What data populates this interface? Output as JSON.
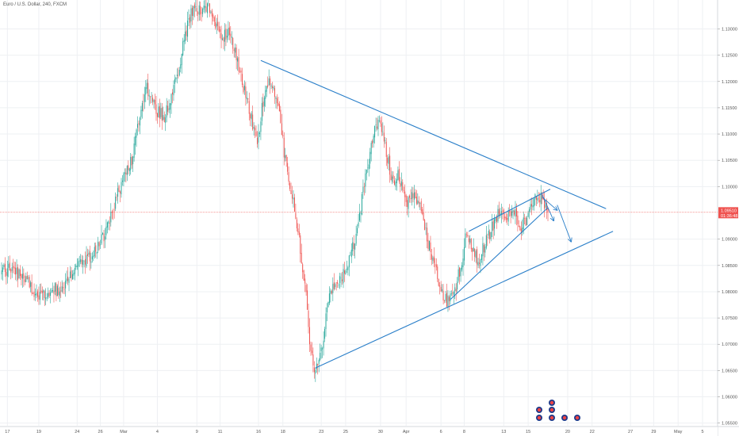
{
  "header": {
    "title": "Euro / U.S. Dollar, 240, FXCM"
  },
  "colors": {
    "bull": "#26a69a",
    "bear": "#ef5350",
    "drawing": "#2a7fc9",
    "price_line": "#ef5350",
    "grid": "#eef0f3",
    "axis_text": "#555555"
  },
  "price_tag": {
    "price": "1.09510",
    "countdown": "01:36:48"
  },
  "event_icons": [
    "flag-icon",
    "flag-icon",
    "flag-icon",
    "flag-icon",
    "flag-icon",
    "flag-icon",
    "flag-icon"
  ],
  "chart_data": {
    "type": "candlestick",
    "symbol": "Euro / U.S. Dollar",
    "interval": "240",
    "source": "FXCM",
    "ylim": [
      1.0545,
      1.1355
    ],
    "y_ticks": [
      1.13,
      1.125,
      1.12,
      1.115,
      1.11,
      1.105,
      1.1,
      1.09,
      1.085,
      1.08,
      1.075,
      1.07,
      1.065,
      1.06,
      1.055
    ],
    "y_tick_labels": [
      "1.13000",
      "1.12500",
      "1.12000",
      "1.11500",
      "1.11000",
      "1.10500",
      "1.10000",
      "1.09000",
      "1.08500",
      "1.08000",
      "1.07500",
      "1.07000",
      "1.06500",
      "1.06000",
      "1.05500"
    ],
    "x_ticks": [
      {
        "label": "17",
        "bar": 5
      },
      {
        "label": "19",
        "bar": 32
      },
      {
        "label": "24",
        "bar": 65
      },
      {
        "label": "26",
        "bar": 85
      },
      {
        "label": "Mar",
        "bar": 105
      },
      {
        "label": "4",
        "bar": 134
      },
      {
        "label": "9",
        "bar": 168
      },
      {
        "label": "11",
        "bar": 188
      },
      {
        "label": "16",
        "bar": 221
      },
      {
        "label": "18",
        "bar": 242
      },
      {
        "label": "23",
        "bar": 275
      },
      {
        "label": "25",
        "bar": 296
      },
      {
        "label": "30",
        "bar": 326
      },
      {
        "label": "Apr",
        "bar": 348
      },
      {
        "label": "6",
        "bar": 378
      },
      {
        "label": "8",
        "bar": 398
      },
      {
        "label": "13",
        "bar": 432
      },
      {
        "label": "15",
        "bar": 453
      },
      {
        "label": "20",
        "bar": 487
      },
      {
        "label": "22",
        "bar": 508
      },
      {
        "label": "27",
        "bar": 541
      },
      {
        "label": "29",
        "bar": 561
      },
      {
        "label": "May",
        "bar": 582
      },
      {
        "label": "5",
        "bar": 603
      }
    ],
    "current_price": 1.0951,
    "keypoints": [
      [
        0,
        1.0835
      ],
      [
        6,
        1.0845
      ],
      [
        14,
        1.0835
      ],
      [
        22,
        1.0825
      ],
      [
        28,
        1.08
      ],
      [
        36,
        1.0795
      ],
      [
        44,
        1.081
      ],
      [
        50,
        1.0798
      ],
      [
        58,
        1.083
      ],
      [
        66,
        1.086
      ],
      [
        74,
        1.0865
      ],
      [
        82,
        1.088
      ],
      [
        90,
        1.0915
      ],
      [
        96,
        1.096
      ],
      [
        104,
        1.101
      ],
      [
        112,
        1.105
      ],
      [
        118,
        1.112
      ],
      [
        124,
        1.119
      ],
      [
        132,
        1.115
      ],
      [
        140,
        1.113
      ],
      [
        148,
        1.119
      ],
      [
        154,
        1.124
      ],
      [
        158,
        1.129
      ],
      [
        162,
        1.132
      ],
      [
        166,
        1.1345
      ],
      [
        172,
        1.133
      ],
      [
        178,
        1.134
      ],
      [
        184,
        1.131
      ],
      [
        190,
        1.128
      ],
      [
        196,
        1.13
      ],
      [
        202,
        1.125
      ],
      [
        208,
        1.119
      ],
      [
        214,
        1.114
      ],
      [
        220,
        1.108
      ],
      [
        226,
        1.118
      ],
      [
        232,
        1.12
      ],
      [
        238,
        1.115
      ],
      [
        244,
        1.105
      ],
      [
        250,
        1.098
      ],
      [
        256,
        1.09
      ],
      [
        262,
        1.08
      ],
      [
        266,
        1.068
      ],
      [
        270,
        1.065
      ],
      [
        276,
        1.07
      ],
      [
        282,
        1.08
      ],
      [
        290,
        1.082
      ],
      [
        298,
        1.085
      ],
      [
        306,
        1.092
      ],
      [
        312,
        1.1
      ],
      [
        318,
        1.108
      ],
      [
        324,
        1.113
      ],
      [
        330,
        1.108
      ],
      [
        336,
        1.101
      ],
      [
        342,
        1.102
      ],
      [
        348,
        1.096
      ],
      [
        354,
        1.099
      ],
      [
        360,
        1.096
      ],
      [
        366,
        1.09
      ],
      [
        372,
        1.086
      ],
      [
        378,
        1.08
      ],
      [
        384,
        1.078
      ],
      [
        390,
        1.08
      ],
      [
        396,
        1.086
      ],
      [
        400,
        1.0915
      ],
      [
        404,
        1.088
      ],
      [
        410,
        1.086
      ],
      [
        416,
        1.089
      ],
      [
        422,
        1.092
      ],
      [
        428,
        1.095
      ],
      [
        434,
        1.094
      ],
      [
        440,
        1.096
      ],
      [
        446,
        1.092
      ],
      [
        452,
        1.094
      ],
      [
        458,
        1.097
      ],
      [
        464,
        1.0985
      ],
      [
        470,
        1.0951
      ]
    ],
    "drawings": [
      {
        "name": "triangle-upper-trendline",
        "from": [
          223,
          1.124
        ],
        "to": [
          520,
          1.0958
        ]
      },
      {
        "name": "triangle-lower-trendline",
        "from": [
          270,
          1.0655
        ],
        "to": [
          526,
          1.0915
        ]
      },
      {
        "name": "channel-upper-line",
        "from": [
          402,
          1.0915
        ],
        "to": [
          472,
          1.0995
        ]
      },
      {
        "name": "channel-lower-line",
        "from": [
          386,
          1.0785
        ],
        "to": [
          470,
          1.096
        ]
      },
      {
        "name": "projection-arrow-1",
        "from": [
          465,
          1.0985
        ],
        "to": [
          475,
          1.0935
        ],
        "arrow": true
      },
      {
        "name": "projection-arrow-2",
        "from": [
          478,
          1.0965
        ],
        "to": [
          490,
          1.0895
        ],
        "arrow": true
      },
      {
        "name": "projection-arrow-3",
        "from": [
          465,
          1.098
        ],
        "to": [
          478,
          1.0955
        ],
        "arrow": true
      }
    ]
  }
}
